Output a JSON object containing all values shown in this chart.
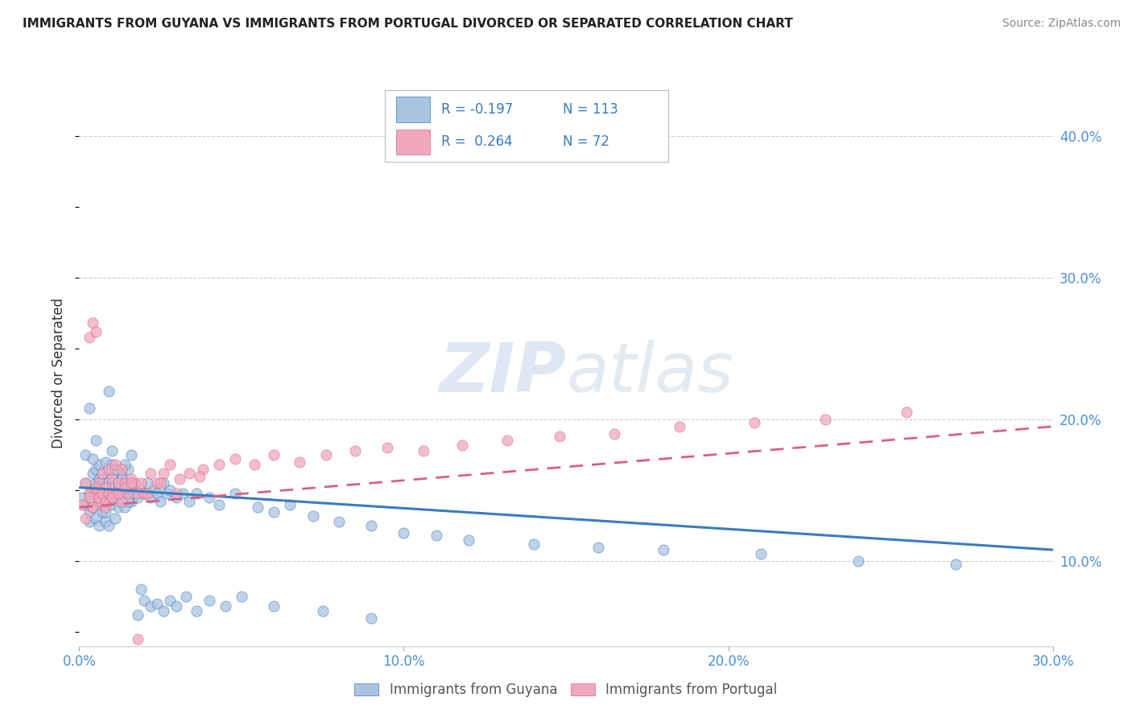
{
  "title": "IMMIGRANTS FROM GUYANA VS IMMIGRANTS FROM PORTUGAL DIVORCED OR SEPARATED CORRELATION CHART",
  "source": "Source: ZipAtlas.com",
  "ylabel": "Divorced or Separated",
  "legend_label1": "Immigrants from Guyana",
  "legend_label2": "Immigrants from Portugal",
  "r1": "-0.197",
  "n1": "113",
  "r2": "0.264",
  "n2": "72",
  "xlim": [
    0.0,
    0.3
  ],
  "ylim": [
    0.04,
    0.425
  ],
  "yticks": [
    0.1,
    0.2,
    0.3,
    0.4
  ],
  "ytick_labels": [
    "10.0%",
    "20.0%",
    "30.0%",
    "40.0%"
  ],
  "xticks": [
    0.0,
    0.1,
    0.2,
    0.3
  ],
  "xtick_labels": [
    "0.0%",
    "10.0%",
    "20.0%",
    "30.0%"
  ],
  "color_guyana": "#aac4e0",
  "color_portugal": "#f0a8bc",
  "line_color_guyana": "#3a7bbf",
  "line_color_portugal": "#d95f8a",
  "watermark_color": "#dce6f0",
  "guyana_x": [
    0.001,
    0.002,
    0.002,
    0.003,
    0.003,
    0.003,
    0.004,
    0.004,
    0.004,
    0.004,
    0.005,
    0.005,
    0.005,
    0.005,
    0.006,
    0.006,
    0.006,
    0.006,
    0.007,
    0.007,
    0.007,
    0.007,
    0.008,
    0.008,
    0.008,
    0.008,
    0.008,
    0.009,
    0.009,
    0.009,
    0.01,
    0.01,
    0.01,
    0.011,
    0.011,
    0.011,
    0.012,
    0.012,
    0.012,
    0.013,
    0.013,
    0.014,
    0.014,
    0.015,
    0.015,
    0.016,
    0.016,
    0.017,
    0.018,
    0.019,
    0.02,
    0.021,
    0.022,
    0.023,
    0.024,
    0.025,
    0.026,
    0.027,
    0.028,
    0.03,
    0.032,
    0.034,
    0.036,
    0.04,
    0.043,
    0.048,
    0.055,
    0.06,
    0.065,
    0.072,
    0.08,
    0.09,
    0.1,
    0.11,
    0.12,
    0.14,
    0.16,
    0.18,
    0.21,
    0.24,
    0.27,
    0.002,
    0.003,
    0.004,
    0.005,
    0.006,
    0.007,
    0.008,
    0.009,
    0.01,
    0.011,
    0.012,
    0.013,
    0.014,
    0.015,
    0.016,
    0.017,
    0.018,
    0.019,
    0.02,
    0.022,
    0.024,
    0.026,
    0.028,
    0.03,
    0.033,
    0.036,
    0.04,
    0.045,
    0.05,
    0.06,
    0.075,
    0.09
  ],
  "guyana_y": [
    0.145,
    0.14,
    0.155,
    0.148,
    0.135,
    0.128,
    0.15,
    0.162,
    0.138,
    0.143,
    0.155,
    0.13,
    0.148,
    0.165,
    0.14,
    0.152,
    0.168,
    0.125,
    0.145,
    0.158,
    0.135,
    0.148,
    0.155,
    0.14,
    0.128,
    0.17,
    0.135,
    0.148,
    0.162,
    0.125,
    0.155,
    0.14,
    0.168,
    0.148,
    0.13,
    0.158,
    0.152,
    0.142,
    0.138,
    0.148,
    0.162,
    0.145,
    0.138,
    0.152,
    0.165,
    0.142,
    0.155,
    0.148,
    0.145,
    0.152,
    0.148,
    0.155,
    0.145,
    0.15,
    0.148,
    0.142,
    0.155,
    0.148,
    0.15,
    0.145,
    0.148,
    0.142,
    0.148,
    0.145,
    0.14,
    0.148,
    0.138,
    0.135,
    0.14,
    0.132,
    0.128,
    0.125,
    0.12,
    0.118,
    0.115,
    0.112,
    0.11,
    0.108,
    0.105,
    0.1,
    0.098,
    0.175,
    0.208,
    0.172,
    0.185,
    0.158,
    0.162,
    0.145,
    0.22,
    0.178,
    0.165,
    0.155,
    0.158,
    0.168,
    0.142,
    0.175,
    0.148,
    0.062,
    0.08,
    0.072,
    0.068,
    0.07,
    0.065,
    0.072,
    0.068,
    0.075,
    0.065,
    0.072,
    0.068,
    0.075,
    0.068,
    0.065,
    0.06
  ],
  "portugal_x": [
    0.001,
    0.002,
    0.003,
    0.003,
    0.004,
    0.004,
    0.005,
    0.005,
    0.006,
    0.006,
    0.007,
    0.007,
    0.008,
    0.008,
    0.009,
    0.009,
    0.01,
    0.01,
    0.011,
    0.011,
    0.012,
    0.012,
    0.013,
    0.013,
    0.014,
    0.015,
    0.016,
    0.017,
    0.018,
    0.019,
    0.02,
    0.022,
    0.024,
    0.026,
    0.028,
    0.031,
    0.034,
    0.038,
    0.043,
    0.048,
    0.054,
    0.06,
    0.068,
    0.076,
    0.085,
    0.095,
    0.106,
    0.118,
    0.132,
    0.148,
    0.165,
    0.185,
    0.208,
    0.23,
    0.255,
    0.002,
    0.003,
    0.004,
    0.005,
    0.006,
    0.007,
    0.008,
    0.009,
    0.01,
    0.012,
    0.014,
    0.016,
    0.018,
    0.021,
    0.025,
    0.03,
    0.037
  ],
  "portugal_y": [
    0.14,
    0.155,
    0.148,
    0.258,
    0.138,
    0.268,
    0.148,
    0.262,
    0.142,
    0.155,
    0.148,
    0.162,
    0.152,
    0.138,
    0.148,
    0.165,
    0.145,
    0.158,
    0.148,
    0.168,
    0.155,
    0.148,
    0.165,
    0.142,
    0.155,
    0.148,
    0.158,
    0.155,
    0.148,
    0.155,
    0.148,
    0.162,
    0.155,
    0.162,
    0.168,
    0.158,
    0.162,
    0.165,
    0.168,
    0.172,
    0.168,
    0.175,
    0.17,
    0.175,
    0.178,
    0.18,
    0.178,
    0.182,
    0.185,
    0.188,
    0.19,
    0.195,
    0.198,
    0.2,
    0.205,
    0.13,
    0.145,
    0.138,
    0.152,
    0.145,
    0.148,
    0.142,
    0.148,
    0.145,
    0.148,
    0.152,
    0.155,
    0.045,
    0.148,
    0.155,
    0.148,
    0.16
  ],
  "trend_guyana_x0": 0.0,
  "trend_guyana_x1": 0.3,
  "trend_guyana_y0": 0.152,
  "trend_guyana_y1": 0.108,
  "trend_portugal_x0": 0.0,
  "trend_portugal_x1": 0.3,
  "trend_portugal_y0": 0.138,
  "trend_portugal_y1": 0.195
}
